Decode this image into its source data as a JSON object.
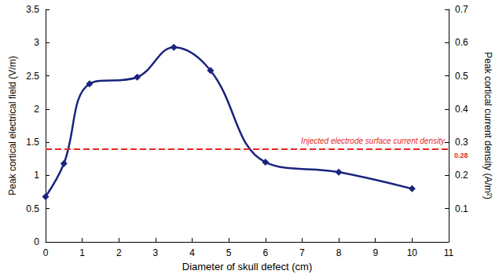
{
  "chart_data": {
    "type": "line",
    "x": [
      0,
      0.5,
      1.2,
      2.5,
      3.5,
      4.5,
      6,
      8,
      10
    ],
    "values": [
      0.68,
      1.18,
      2.38,
      2.48,
      2.93,
      2.58,
      1.2,
      1.05,
      0.8
    ],
    "color": "#1a237e",
    "marker": "diamond",
    "line_style": "solid",
    "xlabel": "Diameter of skull defect (cm)",
    "ylabel": "Peak cortical electrical field (V/m)",
    "y2label": "Peak cortical current density (A/m²)",
    "xlim": [
      0,
      11
    ],
    "xticks": [
      0,
      1,
      2,
      3,
      4,
      5,
      6,
      7,
      8,
      9,
      10,
      11
    ],
    "ylim": [
      0,
      3.5
    ],
    "yticks": [
      0,
      0.5,
      1,
      1.5,
      2,
      2.5,
      3,
      3.5
    ],
    "y2lim": [
      0,
      0.7
    ],
    "y2ticks": [
      0.1,
      0.2,
      0.3,
      0.4,
      0.5,
      0.6,
      0.7
    ],
    "grid": false,
    "annotations": [
      {
        "text": "Injected electrode surface current density",
        "y2": 0.28,
        "color": "#e8281e",
        "line_style": "dashed"
      }
    ]
  }
}
